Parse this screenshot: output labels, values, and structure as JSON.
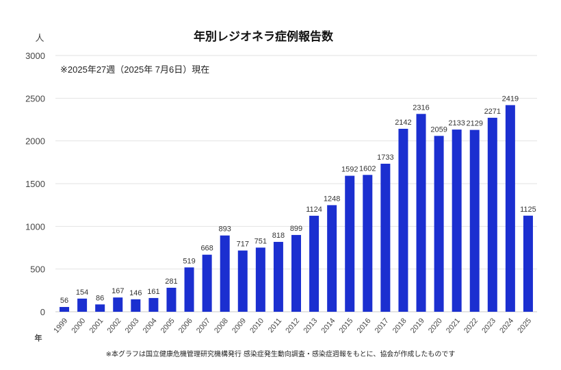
{
  "chart_data": {
    "type": "bar",
    "title": "年別レジオネラ症例報告数",
    "subtitle": "※2025年27週（2025年 7月6日）現在",
    "ylabel": "人",
    "xlabel": "年",
    "footnote": "※本グラフは国立健康危機管理研究機構発行 感染症発生動向調査・感染症週報をもとに、協会が作成したものです",
    "ylim": [
      0,
      3000
    ],
    "yticks": [
      0,
      500,
      1000,
      1500,
      2000,
      2500,
      3000
    ],
    "grid": true,
    "bar_color": "#1b2fd0",
    "categories": [
      "1999",
      "2000",
      "2001",
      "2002",
      "2003",
      "2004",
      "2005",
      "2006",
      "2007",
      "2008",
      "2009",
      "2010",
      "2011",
      "2012",
      "2013",
      "2014",
      "2015",
      "2016",
      "2017",
      "2018",
      "2019",
      "2020",
      "2021",
      "2022",
      "2023",
      "2024",
      "2025"
    ],
    "values": [
      56,
      154,
      86,
      167,
      146,
      161,
      281,
      519,
      668,
      893,
      717,
      751,
      818,
      899,
      1124,
      1248,
      1592,
      1602,
      1733,
      2142,
      2316,
      2059,
      2133,
      2129,
      2271,
      2419,
      1125
    ]
  }
}
